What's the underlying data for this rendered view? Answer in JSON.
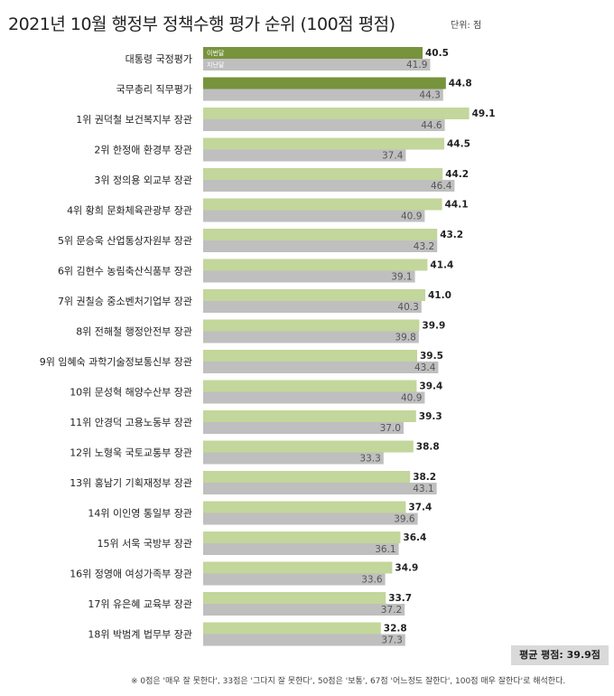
{
  "chart_data": {
    "type": "bar",
    "title": "2021년 10월 행정부 정책수행 평가 순위 (100점 평점)",
    "unit_label": "단위: 점",
    "legend": [
      "이번달",
      "지난달"
    ],
    "categories": [
      "대통령 국정평가",
      "국무총리 직무평가",
      "1위 권덕철 보건복지부 장관",
      "2위 한정애 환경부 장관",
      "3위 정의용 외교부 장관",
      "4위 황희 문화체육관광부 장관",
      "5위 문승욱 산업통상자원부 장관",
      "6위 김현수 농림축산식품부 장관",
      "7위 권칠승 중소벤처기업부 장관",
      "8위 전해철 행정안전부 장관",
      "9위 임혜숙 과학기술정보통신부 장관",
      "10위 문성혁 해양수산부 장관",
      "11위 안경덕 고용노동부 장관",
      "12위 노형욱 국토교통부 장관",
      "13위 홍남기 기획재정부 장관",
      "14위 이인영 통일부 장관",
      "15위 서욱 국방부 장관",
      "16위 정영애 여성가족부 장관",
      "17위 유은혜 교육부 장관",
      "18위 박범계 법무부 장관"
    ],
    "series": [
      {
        "name": "이번달",
        "values": [
          40.5,
          44.8,
          49.1,
          44.5,
          44.2,
          44.1,
          43.2,
          41.4,
          41.0,
          39.9,
          39.5,
          39.4,
          39.3,
          38.8,
          38.2,
          37.4,
          36.4,
          34.9,
          33.7,
          32.8
        ]
      },
      {
        "name": "지난달",
        "values": [
          41.9,
          44.3,
          44.6,
          37.4,
          46.4,
          40.9,
          43.2,
          39.1,
          40.3,
          39.8,
          43.4,
          40.9,
          37.0,
          33.3,
          43.1,
          39.6,
          36.1,
          33.6,
          37.2,
          37.3
        ]
      }
    ],
    "colors": {
      "current_highlight": "#77933c",
      "current": "#c3d69b",
      "previous": "#bfbfbf"
    },
    "xlim": [
      0,
      50
    ],
    "grid": false
  },
  "average_label": "평균 평점: 39.9점",
  "footnote": "※ 0점은 '매우 잘 못한다', 33점은 '그다지 잘 못한다', 50점은 '보통', 67점 '어느정도 잘한다', 100점 매우 잘한다'로 해석한다."
}
